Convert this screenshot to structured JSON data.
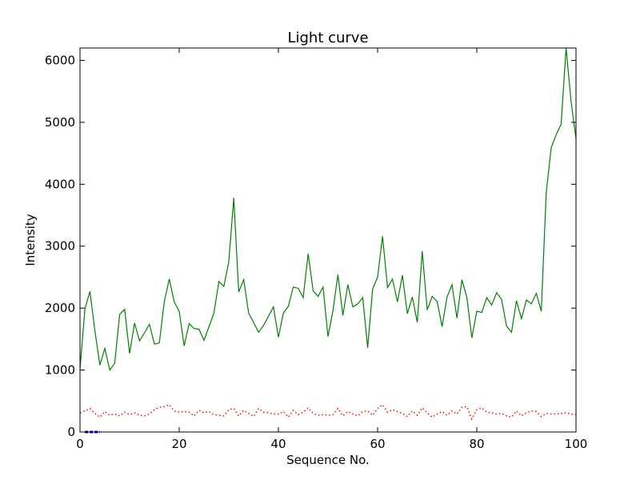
{
  "chart_data": {
    "type": "line",
    "title": "Light curve",
    "xlabel": "Sequence No.",
    "ylabel": "Intensity",
    "xlim": [
      0,
      100
    ],
    "ylim": [
      0,
      6200
    ],
    "xticks": [
      0,
      20,
      40,
      60,
      80,
      100
    ],
    "yticks": [
      0,
      1000,
      2000,
      3000,
      4000,
      5000,
      6000
    ],
    "grid": false,
    "legend": "none",
    "series": [
      {
        "color": "#008000",
        "style": "solid",
        "x": [
          0,
          1,
          2,
          3,
          4,
          5,
          6,
          7,
          8,
          9,
          10,
          11,
          12,
          13,
          14,
          15,
          16,
          17,
          18,
          19,
          20,
          21,
          22,
          23,
          24,
          25,
          26,
          27,
          28,
          29,
          30,
          31,
          32,
          33,
          34,
          35,
          36,
          37,
          38,
          39,
          40,
          41,
          42,
          43,
          44,
          45,
          46,
          47,
          48,
          49,
          50,
          51,
          52,
          53,
          54,
          55,
          56,
          57,
          58,
          59,
          60,
          61,
          62,
          63,
          64,
          65,
          66,
          67,
          68,
          69,
          70,
          71,
          72,
          73,
          74,
          75,
          76,
          77,
          78,
          79,
          80,
          81,
          82,
          83,
          84,
          85,
          86,
          87,
          88,
          89,
          90,
          91,
          92,
          93,
          94,
          95,
          96,
          97,
          98,
          99,
          100
        ],
        "y": [
          1020,
          1990,
          2270,
          1640,
          1080,
          1350,
          1000,
          1110,
          1900,
          1980,
          1270,
          1760,
          1470,
          1600,
          1740,
          1420,
          1440,
          2110,
          2470,
          2100,
          1950,
          1390,
          1750,
          1670,
          1660,
          1480,
          1700,
          1920,
          2430,
          2350,
          2750,
          3780,
          2260,
          2460,
          1920,
          1770,
          1610,
          1720,
          1870,
          2020,
          1530,
          1920,
          2030,
          2340,
          2320,
          2170,
          2880,
          2280,
          2190,
          2340,
          1540,
          1960,
          2540,
          1880,
          2380,
          2020,
          2070,
          2170,
          1360,
          2310,
          2500,
          3160,
          2330,
          2470,
          2100,
          2530,
          1910,
          2180,
          1770,
          2920,
          1970,
          2190,
          2110,
          1700,
          2180,
          2380,
          1840,
          2460,
          2170,
          1520,
          1950,
          1930,
          2170,
          2050,
          2250,
          2140,
          1710,
          1610,
          2120,
          1830,
          2130,
          2070,
          2240,
          1950,
          3870,
          4590,
          4800,
          4970,
          6200,
          5340,
          4740
        ]
      },
      {
        "color": "#ff0000",
        "style": "dotted",
        "x": [
          0,
          1,
          2,
          3,
          4,
          5,
          6,
          7,
          8,
          9,
          10,
          11,
          12,
          13,
          14,
          15,
          16,
          17,
          18,
          19,
          20,
          21,
          22,
          23,
          24,
          25,
          26,
          27,
          28,
          29,
          30,
          31,
          32,
          33,
          34,
          35,
          36,
          37,
          38,
          39,
          40,
          41,
          42,
          43,
          44,
          45,
          46,
          47,
          48,
          49,
          50,
          51,
          52,
          53,
          54,
          55,
          56,
          57,
          58,
          59,
          60,
          61,
          62,
          63,
          64,
          65,
          66,
          67,
          68,
          69,
          70,
          71,
          72,
          73,
          74,
          75,
          76,
          77,
          78,
          79,
          80,
          81,
          82,
          83,
          84,
          85,
          86,
          87,
          88,
          89,
          90,
          91,
          92,
          93,
          94,
          95,
          96,
          97,
          98,
          99,
          100
        ],
        "y": [
          310,
          340,
          380,
          300,
          240,
          330,
          270,
          290,
          260,
          320,
          280,
          310,
          270,
          260,
          290,
          360,
          400,
          410,
          440,
          340,
          320,
          330,
          320,
          260,
          350,
          310,
          330,
          280,
          270,
          260,
          360,
          380,
          260,
          350,
          300,
          250,
          380,
          320,
          310,
          290,
          290,
          330,
          240,
          350,
          280,
          320,
          390,
          300,
          270,
          280,
          270,
          280,
          380,
          260,
          330,
          290,
          260,
          330,
          340,
          270,
          380,
          440,
          320,
          360,
          330,
          300,
          250,
          340,
          270,
          390,
          310,
          240,
          290,
          330,
          270,
          340,
          290,
          400,
          410,
          210,
          360,
          390,
          320,
          310,
          290,
          300,
          260,
          240,
          340,
          260,
          310,
          340,
          330,
          250,
          300,
          290,
          290,
          300,
          310,
          290,
          280
        ]
      },
      {
        "color": "#0000ff",
        "style": "solid",
        "x": [
          1,
          2,
          3,
          4
        ],
        "y": [
          0,
          0,
          0,
          0
        ]
      }
    ]
  }
}
